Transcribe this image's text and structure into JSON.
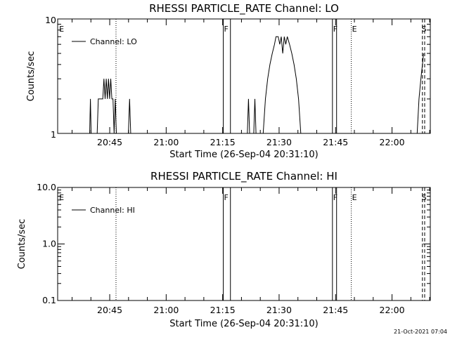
{
  "stamp": "21-Oct-2021 07:04",
  "chart_data": [
    {
      "type": "line",
      "title": "RHESSI PARTICLE_RATE Channel: LO",
      "xlabel": "Start Time (26-Sep-04 20:31:10)",
      "ylabel": "Counts/sec",
      "x_unit": "minutes since 20:31:10",
      "xlim": [
        0,
        99
      ],
      "xticks": [
        {
          "x": 13.83,
          "label": "20:45"
        },
        {
          "x": 28.83,
          "label": "21:00"
        },
        {
          "x": 43.83,
          "label": "21:15"
        },
        {
          "x": 58.83,
          "label": "21:30"
        },
        {
          "x": 73.83,
          "label": "21:45"
        },
        {
          "x": 88.83,
          "label": "22:00"
        }
      ],
      "yscale": "log",
      "ylim": [
        1,
        10
      ],
      "yticks": [
        {
          "v": 1,
          "label": "1"
        },
        {
          "v": 10,
          "label": "10"
        }
      ],
      "series": [
        {
          "name": "Channel: LO",
          "points": [
            [
              0,
              1
            ],
            [
              8.5,
              1
            ],
            [
              8.7,
              2
            ],
            [
              8.9,
              1
            ],
            [
              10.5,
              1
            ],
            [
              10.8,
              2
            ],
            [
              12.0,
              2
            ],
            [
              12.3,
              3
            ],
            [
              12.6,
              2
            ],
            [
              12.9,
              3
            ],
            [
              13.2,
              2
            ],
            [
              13.5,
              3
            ],
            [
              13.8,
              2
            ],
            [
              14.1,
              3
            ],
            [
              14.4,
              2
            ],
            [
              14.7,
              2
            ],
            [
              15.0,
              1
            ],
            [
              15.3,
              2
            ],
            [
              15.6,
              1
            ],
            [
              18.8,
              1
            ],
            [
              19.1,
              2
            ],
            [
              19.4,
              1
            ],
            [
              44.0,
              1
            ],
            [
              44.1,
              null
            ],
            [
              45.9,
              null
            ],
            [
              46.0,
              1
            ],
            [
              50.4,
              1
            ],
            [
              50.7,
              2
            ],
            [
              51.0,
              1
            ],
            [
              52.1,
              1
            ],
            [
              52.4,
              2
            ],
            [
              52.7,
              1
            ],
            [
              54.6,
              1
            ],
            [
              55.2,
              2
            ],
            [
              55.8,
              3
            ],
            [
              56.4,
              4
            ],
            [
              57.0,
              5
            ],
            [
              57.6,
              6
            ],
            [
              58.0,
              7
            ],
            [
              58.6,
              7
            ],
            [
              59.0,
              6
            ],
            [
              59.4,
              7
            ],
            [
              59.8,
              5
            ],
            [
              60.2,
              7
            ],
            [
              60.6,
              6
            ],
            [
              61.0,
              7
            ],
            [
              61.6,
              6
            ],
            [
              62.2,
              5
            ],
            [
              62.8,
              4
            ],
            [
              63.4,
              3
            ],
            [
              64.0,
              2
            ],
            [
              64.6,
              1
            ],
            [
              72.9,
              1
            ],
            [
              73.0,
              null
            ],
            [
              74.1,
              null
            ],
            [
              74.2,
              1
            ],
            [
              95.5,
              1
            ],
            [
              96.0,
              2
            ],
            [
              96.5,
              3
            ],
            [
              96.9,
              4
            ],
            [
              97.2,
              5
            ],
            [
              97.4,
              null
            ]
          ]
        }
      ],
      "gaps": [
        [
          44.0,
          45.9
        ],
        [
          73.0,
          74.1
        ]
      ],
      "markers": [
        {
          "x": 0.2,
          "label": "E"
        },
        {
          "x": 44.0,
          "label": "F"
        },
        {
          "x": 73.0,
          "label": "F"
        },
        {
          "x": 78.0,
          "label": "E"
        },
        {
          "x": 96.5,
          "label": "S"
        }
      ],
      "vlines": [
        {
          "x": 15.5,
          "style": "dotted"
        },
        {
          "x": 78.0,
          "style": "dotted"
        },
        {
          "x": 96.9,
          "style": "dashed"
        },
        {
          "x": 97.5,
          "style": "dashed"
        }
      ],
      "legend": "top-left",
      "grid": false
    },
    {
      "type": "line",
      "title": "RHESSI PARTICLE_RATE Channel: HI",
      "xlabel": "Start Time (26-Sep-04 20:31:10)",
      "ylabel": "Counts/sec",
      "x_unit": "minutes since 20:31:10",
      "xlim": [
        0,
        99
      ],
      "xticks": [
        {
          "x": 13.83,
          "label": "20:45"
        },
        {
          "x": 28.83,
          "label": "21:00"
        },
        {
          "x": 43.83,
          "label": "21:15"
        },
        {
          "x": 58.83,
          "label": "21:30"
        },
        {
          "x": 73.83,
          "label": "21:45"
        },
        {
          "x": 88.83,
          "label": "22:00"
        }
      ],
      "yscale": "log",
      "ylim": [
        0.1,
        10
      ],
      "yticks": [
        {
          "v": 0.1,
          "label": "0.1"
        },
        {
          "v": 1,
          "label": "1.0"
        },
        {
          "v": 10,
          "label": "10.0"
        }
      ],
      "series": [
        {
          "name": "Channel: HI",
          "points": []
        }
      ],
      "gaps": [
        [
          44.0,
          45.9
        ],
        [
          73.0,
          74.1
        ]
      ],
      "markers": [
        {
          "x": 0.2,
          "label": "E"
        },
        {
          "x": 44.0,
          "label": "F"
        },
        {
          "x": 73.0,
          "label": "F"
        },
        {
          "x": 78.0,
          "label": "E"
        },
        {
          "x": 96.5,
          "label": "S"
        }
      ],
      "vlines": [
        {
          "x": 15.5,
          "style": "dotted"
        },
        {
          "x": 78.0,
          "style": "dotted"
        },
        {
          "x": 96.9,
          "style": "dashed"
        },
        {
          "x": 97.5,
          "style": "dashed"
        }
      ],
      "legend": "top-left",
      "grid": false
    }
  ]
}
